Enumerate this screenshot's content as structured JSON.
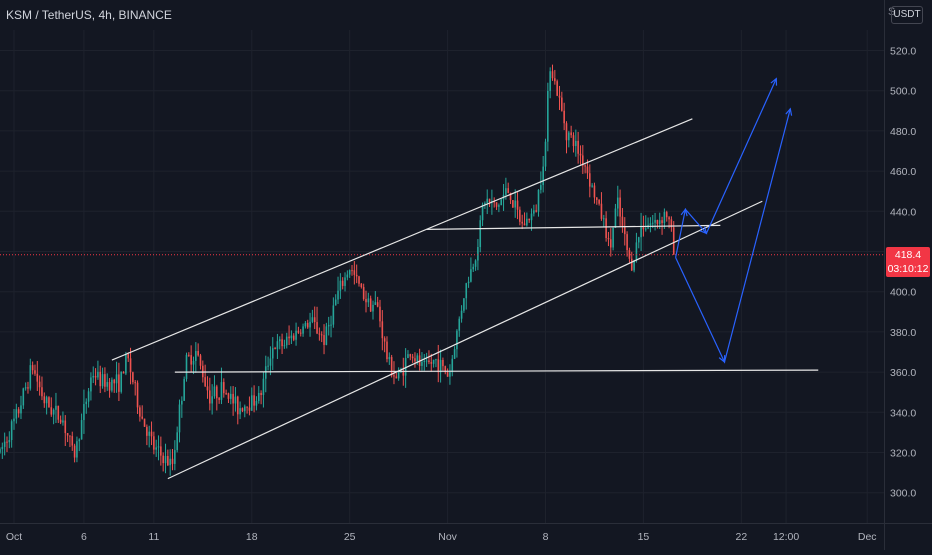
{
  "header": {
    "symbol_title": "KSM / TetherUS, 4h, BINANCE",
    "currency": "USDT",
    "scale_handle": "S"
  },
  "last_price": {
    "price": "418.4",
    "countdown": "03:10:12",
    "value": 418.4,
    "color": "#f23645"
  },
  "colors": {
    "background": "#131722",
    "up": "#26a69a",
    "down": "#ef5350",
    "trendline": "#e6e6e6",
    "projection": "#2962ff",
    "axis_text": "#b2b5be"
  },
  "chart_data": {
    "type": "candlestick",
    "symbol": "KSM / TetherUS",
    "interval": "4h",
    "exchange": "BINANCE",
    "y_ticks": [
      300,
      320,
      340,
      360,
      380,
      400,
      420,
      440,
      460,
      480,
      500,
      520
    ],
    "y_tick_labels": [
      "300.0",
      "320.0",
      "340.0",
      "360.0",
      "380.0",
      "400.0",
      "420.0",
      "440.0",
      "460.0",
      "480.0",
      "500.0",
      "520.0"
    ],
    "ylim": [
      290,
      530
    ],
    "x_ticks": [
      {
        "day": 1,
        "label": "Oct"
      },
      {
        "day": 6,
        "label": "6"
      },
      {
        "day": 11,
        "label": "11"
      },
      {
        "day": 18,
        "label": "18"
      },
      {
        "day": 25,
        "label": "25"
      },
      {
        "day": 32,
        "label": "Nov"
      },
      {
        "day": 39,
        "label": "8"
      },
      {
        "day": 46,
        "label": "15"
      },
      {
        "day": 53,
        "label": "22"
      },
      {
        "day": 56.2,
        "label": "12:00"
      },
      {
        "day": 62,
        "label": "Dec"
      }
    ],
    "xlim": [
      0,
      63.2
    ],
    "price_path": [
      [
        0.0,
        320
      ],
      [
        1.2,
        338
      ],
      [
        2.3,
        363
      ],
      [
        3.2,
        345
      ],
      [
        4.5,
        336
      ],
      [
        5.3,
        318
      ],
      [
        6.6,
        360
      ],
      [
        7.3,
        355
      ],
      [
        8.6,
        355
      ],
      [
        9.1,
        368
      ],
      [
        10.0,
        340
      ],
      [
        11.0,
        322
      ],
      [
        12.3,
        313
      ],
      [
        13.3,
        365
      ],
      [
        14.0,
        370
      ],
      [
        15.0,
        348
      ],
      [
        16.0,
        352
      ],
      [
        17.0,
        342
      ],
      [
        18.6,
        348
      ],
      [
        19.4,
        372
      ],
      [
        20.3,
        374
      ],
      [
        21.2,
        380
      ],
      [
        22.3,
        385
      ],
      [
        23.2,
        376
      ],
      [
        24.1,
        398
      ],
      [
        25.0,
        412
      ],
      [
        26.2,
        396
      ],
      [
        27.0,
        392
      ],
      [
        27.7,
        366
      ],
      [
        28.4,
        356
      ],
      [
        29.3,
        370
      ],
      [
        30.2,
        362
      ],
      [
        31.2,
        366
      ],
      [
        32.1,
        358
      ],
      [
        33.2,
        400
      ],
      [
        34.0,
        418
      ],
      [
        34.6,
        446
      ],
      [
        35.5,
        442
      ],
      [
        36.3,
        451
      ],
      [
        37.3,
        433
      ],
      [
        38.3,
        440
      ],
      [
        39.0,
        474
      ],
      [
        39.3,
        515
      ],
      [
        39.8,
        500
      ],
      [
        40.5,
        480
      ],
      [
        41.2,
        472
      ],
      [
        41.9,
        462
      ],
      [
        42.5,
        448
      ],
      [
        43.2,
        434
      ],
      [
        43.6,
        420
      ],
      [
        44.1,
        445
      ],
      [
        44.6,
        428
      ],
      [
        45.1,
        412
      ],
      [
        45.9,
        434
      ],
      [
        46.9,
        434
      ],
      [
        47.6,
        440
      ],
      [
        48.0,
        430
      ],
      [
        48.2,
        418.4
      ]
    ],
    "overlays": {
      "channel_upper": [
        [
          8.0,
          366
        ],
        [
          49.5,
          486
        ]
      ],
      "channel_lower": [
        [
          12.0,
          307
        ],
        [
          54.5,
          445
        ]
      ],
      "support_360": [
        [
          12.5,
          360
        ],
        [
          58.5,
          361
        ]
      ],
      "resistance_432": [
        [
          30.5,
          431
        ],
        [
          51.5,
          433
        ]
      ],
      "last_price_line": 418.4,
      "projection_bear": [
        [
          48.3,
          417
        ],
        [
          51.8,
          365
        ],
        [
          56.5,
          491
        ]
      ],
      "projection_bull": [
        [
          48.3,
          417
        ],
        [
          49.0,
          441
        ],
        [
          50.5,
          429
        ],
        [
          55.5,
          506
        ]
      ]
    }
  }
}
